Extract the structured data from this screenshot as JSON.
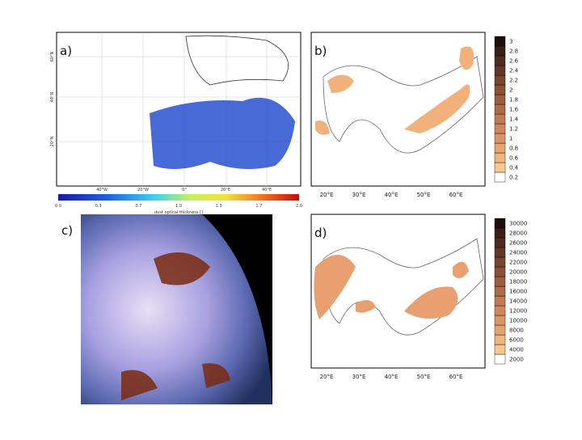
{
  "panels": [
    {
      "label": "a)",
      "lat_labels": [
        "60°N",
        "40°N",
        "20°N"
      ],
      "lon_labels": [
        "40°W",
        "20°W",
        "0°",
        "20°E",
        "40°E"
      ],
      "colorbar": {
        "title": "dust optical thickness []",
        "labels": [
          "0.0",
          "0.3",
          "0.7",
          "1.0",
          "1.3",
          "1.7",
          "2.0"
        ]
      }
    },
    {
      "label": "b)",
      "lon_labels": [
        "20°E",
        "30°E",
        "40°E",
        "50°E",
        "60°E"
      ],
      "colorbar": {
        "labels": [
          "0.2",
          "0.4",
          "0.6",
          "0.8",
          "1",
          "1.2",
          "1.4",
          "1.6",
          "1.8",
          "2",
          "2.2",
          "2.4",
          "2.6",
          "2.8",
          "3"
        ]
      }
    },
    {
      "label": "c)"
    },
    {
      "label": "d)",
      "lon_labels": [
        "20°E",
        "30°E",
        "40°E",
        "50°E",
        "60°E"
      ],
      "colorbar": {
        "labels": [
          "2000",
          "4000",
          "6000",
          "8000",
          "10000",
          "12000",
          "14000",
          "16000",
          "18000",
          "20000",
          "22000",
          "24000",
          "26000",
          "28000",
          "30000"
        ]
      }
    }
  ]
}
